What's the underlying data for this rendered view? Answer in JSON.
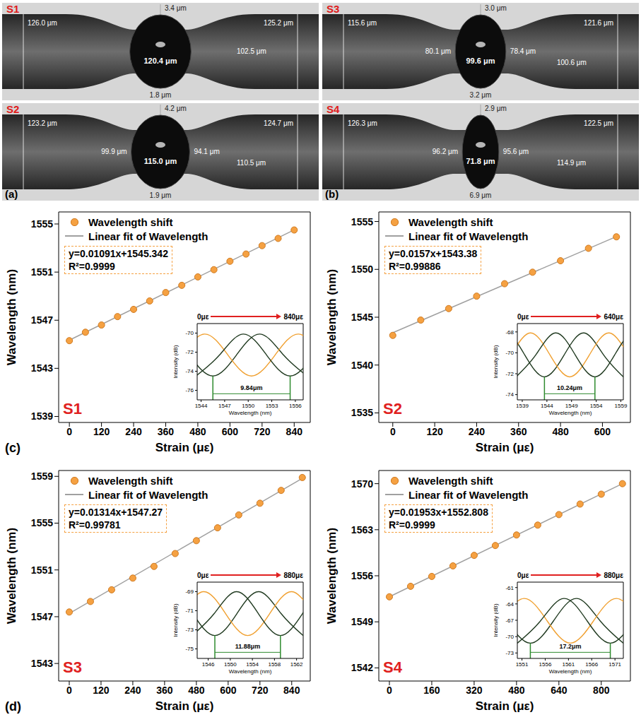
{
  "micrographs": [
    {
      "panel": "(a)",
      "images": [
        {
          "name": "S1",
          "outer_left": "126.0 μm",
          "wall_top": "3.4 μm",
          "outer_right": "125.2 μm",
          "neck_right": "102.5 μm",
          "bubble": "120.4 μm",
          "wall_bottom": "1.8 μm"
        },
        {
          "name": "S2",
          "outer_left": "123.2 μm",
          "wall_top": "4.2 μm",
          "outer_right": "124.7 μm",
          "waist_left": "99.9 μm",
          "bubble": "115.0 μm",
          "waist_right": "94.1 μm",
          "neck_right": "110.5 μm",
          "wall_bottom": "1.9 μm"
        }
      ]
    },
    {
      "panel": "(b)",
      "images": [
        {
          "name": "S3",
          "outer_left": "115.6 μm",
          "wall_top": "3.0 μm",
          "outer_right": "121.6 μm",
          "waist_left": "80.1 μm",
          "bubble": "99.6 μm",
          "waist_right": "78.4 μm",
          "neck_right": "100.6 μm",
          "wall_bottom": "3.2 μm"
        },
        {
          "name": "S4",
          "outer_left": "126.3 μm",
          "wall_top": "2.9 μm",
          "outer_right": "122.5 μm",
          "waist_left": "96.2 μm",
          "bubble": "71.8 μm",
          "waist_right": "95.6 μm",
          "neck_right": "114.9 μm",
          "wall_bottom": "6.9 μm"
        }
      ]
    }
  ],
  "chart_data": [
    {
      "type": "scatter",
      "title": "S1",
      "panel_label": "(c)",
      "x_label": "Strain (με)",
      "y_label": "Wavelength (nm)",
      "xlim": [
        -40,
        900
      ],
      "xticks": [
        0,
        120,
        240,
        360,
        480,
        600,
        720,
        840
      ],
      "ylim": [
        1538.5,
        1556
      ],
      "yticks": [
        1539,
        1543,
        1547,
        1551,
        1555
      ],
      "legend": "upper left",
      "series": [
        {
          "name": "Wavelength shift",
          "type": "scatter",
          "marker": "circle",
          "color": "#f5a142",
          "x": [
            0,
            60,
            120,
            180,
            240,
            300,
            360,
            420,
            480,
            540,
            600,
            660,
            720,
            780,
            840
          ],
          "values": [
            1545.3,
            1546.0,
            1546.6,
            1547.3,
            1547.9,
            1548.6,
            1549.3,
            1549.9,
            1550.6,
            1551.2,
            1551.9,
            1552.5,
            1553.2,
            1553.8,
            1554.5
          ]
        },
        {
          "name": "Linear fit of Wavelength",
          "type": "line",
          "color": "#a0a0a0",
          "slope": 0.01091,
          "intercept": 1545.342
        }
      ],
      "equation": "y=0.01091x+1545.342",
      "r_squared": "R²=0.9999",
      "inset": {
        "type": "line",
        "x_label": "Wavelength (nm)",
        "y_label": "Intensity (dB)",
        "xlim": [
          1543.5,
          1557
        ],
        "xticks": [
          1544,
          1547,
          1550,
          1553,
          1556
        ],
        "ylim": [
          -77,
          -69
        ],
        "yticks": [
          -76,
          -74,
          -72,
          -70
        ],
        "start_label": "0με",
        "end_label": "840με",
        "span_label": "9.84μm",
        "span_x": [
          1545.5,
          1555.34
        ],
        "series": [
          {
            "color": "#203a20",
            "x": [
              1533.5,
              1536.5,
              1539.5,
              1542.5,
              1545.5,
              1548.5,
              1551.5,
              1554.5,
              1557.5
            ],
            "values": [
              -74.5,
              -72.3,
              -70.1,
              -72.3,
              -74.5,
              -72.3,
              -70.1,
              -72.3,
              -74.5
            ]
          },
          {
            "color": "#f0a030",
            "x": [
              1538.42,
              1541.42,
              1544.42,
              1547.42,
              1550.42,
              1553.42,
              1556.42,
              1559.42,
              1562.42
            ],
            "values": [
              -74.5,
              -72.3,
              -70.1,
              -72.3,
              -74.5,
              -72.3,
              -70.1,
              -72.3,
              -74.5
            ]
          },
          {
            "color": "#203a20",
            "x": [
              1543.34,
              1546.34,
              1549.34,
              1552.34,
              1555.34,
              1558.34,
              1561.34,
              1564.34,
              1567.34
            ],
            "values": [
              -74.5,
              -72.3,
              -70.1,
              -72.3,
              -74.5,
              -72.3,
              -70.1,
              -72.3,
              -74.5
            ]
          }
        ]
      }
    },
    {
      "type": "scatter",
      "title": "S2",
      "x_label": "Strain (με)",
      "y_label": "Wavelength (nm)",
      "xlim": [
        -40,
        680
      ],
      "xticks": [
        0,
        120,
        240,
        360,
        480,
        600
      ],
      "ylim": [
        1534,
        1556
      ],
      "yticks": [
        1535,
        1540,
        1545,
        1550,
        1555
      ],
      "legend": "upper left",
      "series": [
        {
          "name": "Wavelength shift",
          "type": "scatter",
          "marker": "circle",
          "color": "#f5a142",
          "x": [
            0,
            80,
            160,
            240,
            320,
            400,
            480,
            560,
            640
          ],
          "values": [
            1543.1,
            1544.7,
            1545.9,
            1547.2,
            1548.5,
            1549.7,
            1550.9,
            1552.2,
            1553.4
          ]
        },
        {
          "name": "Linear fit of Wavelength",
          "type": "line",
          "color": "#a0a0a0",
          "slope": 0.0157,
          "intercept": 1543.38
        }
      ],
      "equation": "y=0.0157x+1543.38",
      "r_squared": "R²=0.99886",
      "inset": {
        "type": "line",
        "x_label": "Wavelength (nm)",
        "y_label": "Intensity (dB)",
        "xlim": [
          1538,
          1559.5
        ],
        "xticks": [
          1539,
          1544,
          1549,
          1554,
          1559
        ],
        "ylim": [
          -74.5,
          -67.2
        ],
        "yticks": [
          -74,
          -72,
          -70,
          -68
        ],
        "start_label": "0με",
        "end_label": "640με",
        "span_label": "10.24μm",
        "span_x": [
          1543.5,
          1553.74
        ],
        "series": [
          {
            "color": "#203a20",
            "x": [
              1527.5,
              1531.5,
              1535.5,
              1539.5,
              1543.5,
              1547.5,
              1551.5,
              1555.5,
              1559.5
            ],
            "values": [
              -72.3,
              -70.2,
              -68.1,
              -70.2,
              -72.3,
              -70.2,
              -68.1,
              -70.2,
              -72.3
            ]
          },
          {
            "color": "#f0a030",
            "x": [
              1532.62,
              1536.62,
              1540.62,
              1544.62,
              1548.62,
              1552.62,
              1556.62,
              1560.62,
              1564.62
            ],
            "values": [
              -72.3,
              -70.2,
              -68.1,
              -70.2,
              -72.3,
              -70.2,
              -68.1,
              -70.2,
              -72.3
            ]
          },
          {
            "color": "#203a20",
            "x": [
              1537.74,
              1541.74,
              1545.74,
              1549.74,
              1553.74,
              1557.74,
              1561.74,
              1565.74,
              1569.74
            ],
            "values": [
              -72.3,
              -70.2,
              -68.1,
              -70.2,
              -72.3,
              -70.2,
              -68.1,
              -70.2,
              -72.3
            ]
          }
        ]
      }
    },
    {
      "type": "scatter",
      "title": "S3",
      "panel_label": "(d)",
      "x_label": "Strain (με)",
      "y_label": "Wavelength (nm)",
      "xlim": [
        -40,
        910
      ],
      "xticks": [
        0,
        120,
        240,
        360,
        480,
        600,
        720,
        840
      ],
      "ylim": [
        1541.5,
        1559.5
      ],
      "yticks": [
        1543,
        1547,
        1551,
        1555,
        1559
      ],
      "legend": "upper left",
      "series": [
        {
          "name": "Wavelength shift",
          "type": "scatter",
          "marker": "circle",
          "color": "#f5a142",
          "x": [
            0,
            80,
            160,
            240,
            320,
            400,
            480,
            560,
            640,
            720,
            800,
            880
          ],
          "values": [
            1547.4,
            1548.3,
            1549.3,
            1550.3,
            1551.3,
            1552.4,
            1553.5,
            1554.6,
            1555.7,
            1556.7,
            1557.8,
            1558.9
          ]
        },
        {
          "name": "Linear fit of Wavelength",
          "type": "line",
          "color": "#a0a0a0",
          "slope": 0.01314,
          "intercept": 1547.27
        }
      ],
      "equation": "y=0.01314x+1547.27",
      "r_squared": "R²=0.99781",
      "inset": {
        "type": "line",
        "x_label": "Wavelength (nm)",
        "y_label": "Intensity (dB)",
        "xlim": [
          1544,
          1563.2
        ],
        "xticks": [
          1546,
          1550,
          1554,
          1558,
          1562
        ],
        "ylim": [
          -76,
          -68
        ],
        "yticks": [
          -75,
          -73,
          -71,
          -69
        ],
        "start_label": "0με",
        "end_label": "880με",
        "span_label": "11.88μm",
        "span_x": [
          1547.2,
          1559.08
        ],
        "series": [
          {
            "color": "#203a20",
            "x": [
              1531.2,
              1535.2,
              1539.2,
              1543.2,
              1547.2,
              1551.2,
              1555.2,
              1559.2,
              1563.2
            ],
            "values": [
              -73.6,
              -71.3,
              -69.0,
              -71.3,
              -73.6,
              -71.3,
              -69.0,
              -71.3,
              -73.6
            ]
          },
          {
            "color": "#f0a030",
            "x": [
              1537.14,
              1541.14,
              1545.14,
              1549.14,
              1553.14,
              1557.14,
              1561.14,
              1565.14,
              1569.14
            ],
            "values": [
              -73.6,
              -71.3,
              -69.0,
              -71.3,
              -73.6,
              -71.3,
              -69.0,
              -71.3,
              -73.6
            ]
          },
          {
            "color": "#203a20",
            "x": [
              1543.08,
              1547.08,
              1551.08,
              1555.08,
              1559.08,
              1563.08,
              1567.08,
              1571.08,
              1575.08
            ],
            "values": [
              -73.6,
              -71.3,
              -69.0,
              -71.3,
              -73.6,
              -71.3,
              -69.0,
              -71.3,
              -73.6
            ]
          }
        ]
      }
    },
    {
      "type": "scatter",
      "title": "S4",
      "x_label": "Strain (με)",
      "y_label": "Wavelength (nm)",
      "xlim": [
        -40,
        910
      ],
      "xticks": [
        0,
        160,
        320,
        480,
        640,
        800
      ],
      "ylim": [
        1540,
        1572
      ],
      "yticks": [
        1542,
        1549,
        1556,
        1563,
        1570
      ],
      "legend": "upper left",
      "series": [
        {
          "name": "Wavelength shift",
          "type": "scatter",
          "marker": "circle",
          "color": "#f5a142",
          "x": [
            0,
            80,
            160,
            240,
            320,
            400,
            480,
            560,
            640,
            720,
            800,
            880
          ],
          "values": [
            1552.8,
            1554.4,
            1555.9,
            1557.5,
            1559.1,
            1560.6,
            1562.2,
            1563.7,
            1565.3,
            1566.9,
            1568.4,
            1570.0
          ]
        },
        {
          "name": "Linear fit of Wavelength",
          "type": "line",
          "color": "#a0a0a0",
          "slope": 0.01953,
          "intercept": 1552.808
        }
      ],
      "equation": "y=0.01953x+1552.808",
      "r_squared": "R²=0.9999",
      "inset": {
        "type": "line",
        "x_label": "Wavelength (nm)",
        "y_label": "Intensity (dB)",
        "xlim": [
          1550,
          1572.8
        ],
        "xticks": [
          1551,
          1556,
          1561,
          1566,
          1571
        ],
        "ylim": [
          -74,
          -60
        ],
        "yticks": [
          -73,
          -70,
          -67,
          -64,
          -61
        ],
        "start_label": "0με",
        "end_label": "880με",
        "span_label": "17.2μm",
        "span_x": [
          1552.8,
          1570
        ],
        "series": [
          {
            "color": "#203a20",
            "x": [
              1532.8,
              1537.8,
              1542.8,
              1547.8,
              1552.8,
              1557.8,
              1562.8,
              1567.8,
              1572.8
            ],
            "values": [
              -71.2,
              -67.1,
              -63.0,
              -67.1,
              -71.2,
              -67.1,
              -63.0,
              -67.1,
              -71.2
            ]
          },
          {
            "color": "#f0a030",
            "x": [
              1541.4,
              1546.4,
              1551.4,
              1556.4,
              1561.4,
              1566.4,
              1571.4,
              1576.4,
              1581.4
            ],
            "values": [
              -71.2,
              -67.1,
              -63.0,
              -67.1,
              -71.2,
              -67.1,
              -63.0,
              -67.1,
              -71.2
            ]
          },
          {
            "color": "#203a20",
            "x": [
              1550,
              1555,
              1560,
              1565,
              1570,
              1575,
              1580,
              1585,
              1590
            ],
            "values": [
              -71.2,
              -67.1,
              -63.0,
              -67.1,
              -71.2,
              -67.1,
              -63.0,
              -67.1,
              -71.2
            ]
          }
        ]
      }
    }
  ]
}
